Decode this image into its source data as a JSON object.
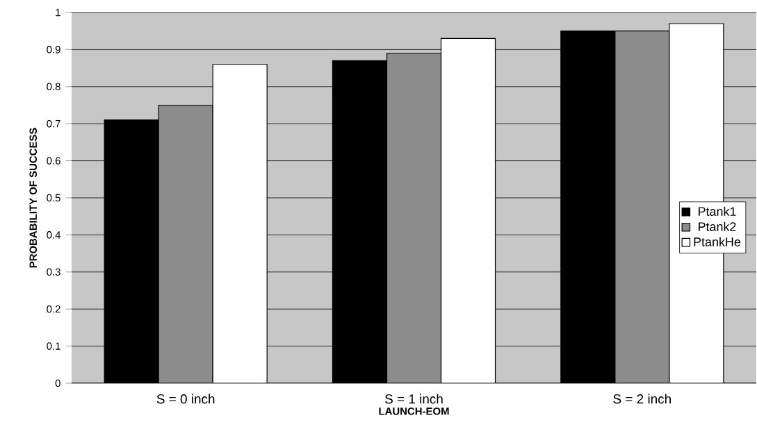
{
  "chart_data": {
    "type": "bar",
    "xlabel": "LAUNCH-EOM",
    "ylabel": "PROBABILITY OF SUCCESS",
    "categories": [
      "S = 0 inch",
      "S = 1 inch",
      "S = 2 inch"
    ],
    "series": [
      {
        "name": "Ptank1",
        "color": "#000000",
        "values": [
          0.71,
          0.87,
          0.95
        ]
      },
      {
        "name": "Ptank2",
        "color": "#8c8c8c",
        "values": [
          0.75,
          0.89,
          0.95
        ]
      },
      {
        "name": "PtankHe",
        "color": "#ffffff",
        "values": [
          0.86,
          0.93,
          0.97
        ]
      }
    ],
    "ylim": [
      0,
      1
    ],
    "yticks": [
      0,
      0.1,
      0.2,
      0.3,
      0.4,
      0.5,
      0.6,
      0.7,
      0.8,
      0.9,
      1
    ],
    "grid": "y",
    "legend": "right"
  }
}
